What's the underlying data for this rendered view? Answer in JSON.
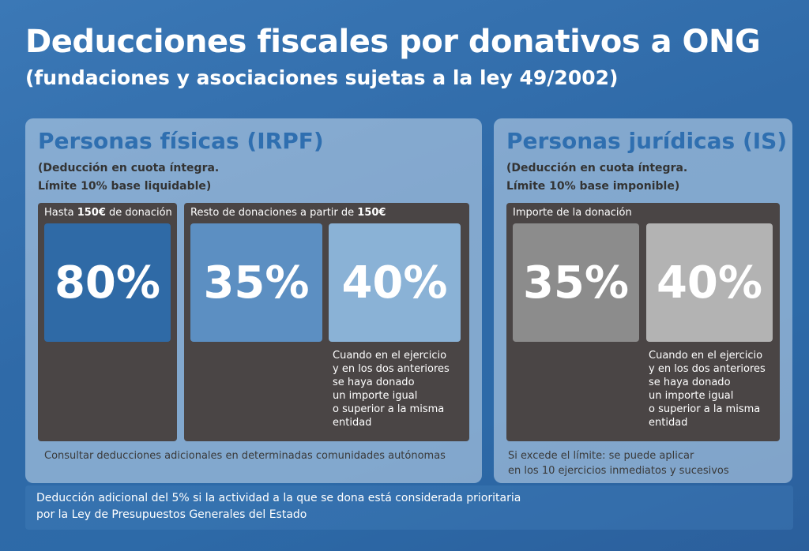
{
  "title": "Deducciones fiscales por donativos a ONG",
  "subtitle": "(fundaciones y asociaciones sujetas a la ley 49/2002)",
  "irpf": {
    "title": "Personas físicas (IRPF)",
    "note_line1": "(Deducción en cuota íntegra.",
    "note_line2": "Límite 10% base liquidable)",
    "group1_label_prefix": "Hasta ",
    "group1_label_bold": "150€",
    "group1_label_suffix": " de donación",
    "group2_label_prefix": "Resto de donaciones a partir de ",
    "group2_label_bold": "150€",
    "box1_value": "80%",
    "box2_value": "35%",
    "box3_value": "40%",
    "condition": [
      "Cuando en el ejercicio",
      "y en los dos anteriores",
      "se haya donado",
      "un importe igual",
      "o superior a la misma",
      "entidad"
    ],
    "footnote": "Consultar deducciones adicionales en determinadas comunidades autónomas"
  },
  "is": {
    "title": "Personas jurídicas (IS)",
    "note_line1": "(Deducción en cuota íntegra.",
    "note_line2": "Límite 10% base imponible)",
    "group_label": "Importe de la donación",
    "box1_value": "35%",
    "box2_value": "40%",
    "condition": [
      "Cuando en el ejercicio",
      "y en los dos anteriores",
      "se haya donado",
      "un importe igual",
      "o superior a la misma",
      "entidad"
    ],
    "footnote_line1": "Si excede el límite: se puede aplicar",
    "footnote_line2": "en los 10 ejercicios inmediatos y sucesivos"
  },
  "bottom": {
    "line1": "Deducción adicional del 5% si la actividad a la que se dona está considerada prioritaria",
    "line2": "por la Ley de Presupuestos Generales del Estado"
  },
  "colors": {
    "box_80": "#2f6aa6",
    "box_35_irpf": "#5c8fc2",
    "box_40_irpf": "#8ab2d6",
    "box_35_is": "#8c8c8c",
    "box_40_is": "#b3b3b3",
    "dark_panel": "#4a4545",
    "panel_title": "#2f6fb0"
  }
}
